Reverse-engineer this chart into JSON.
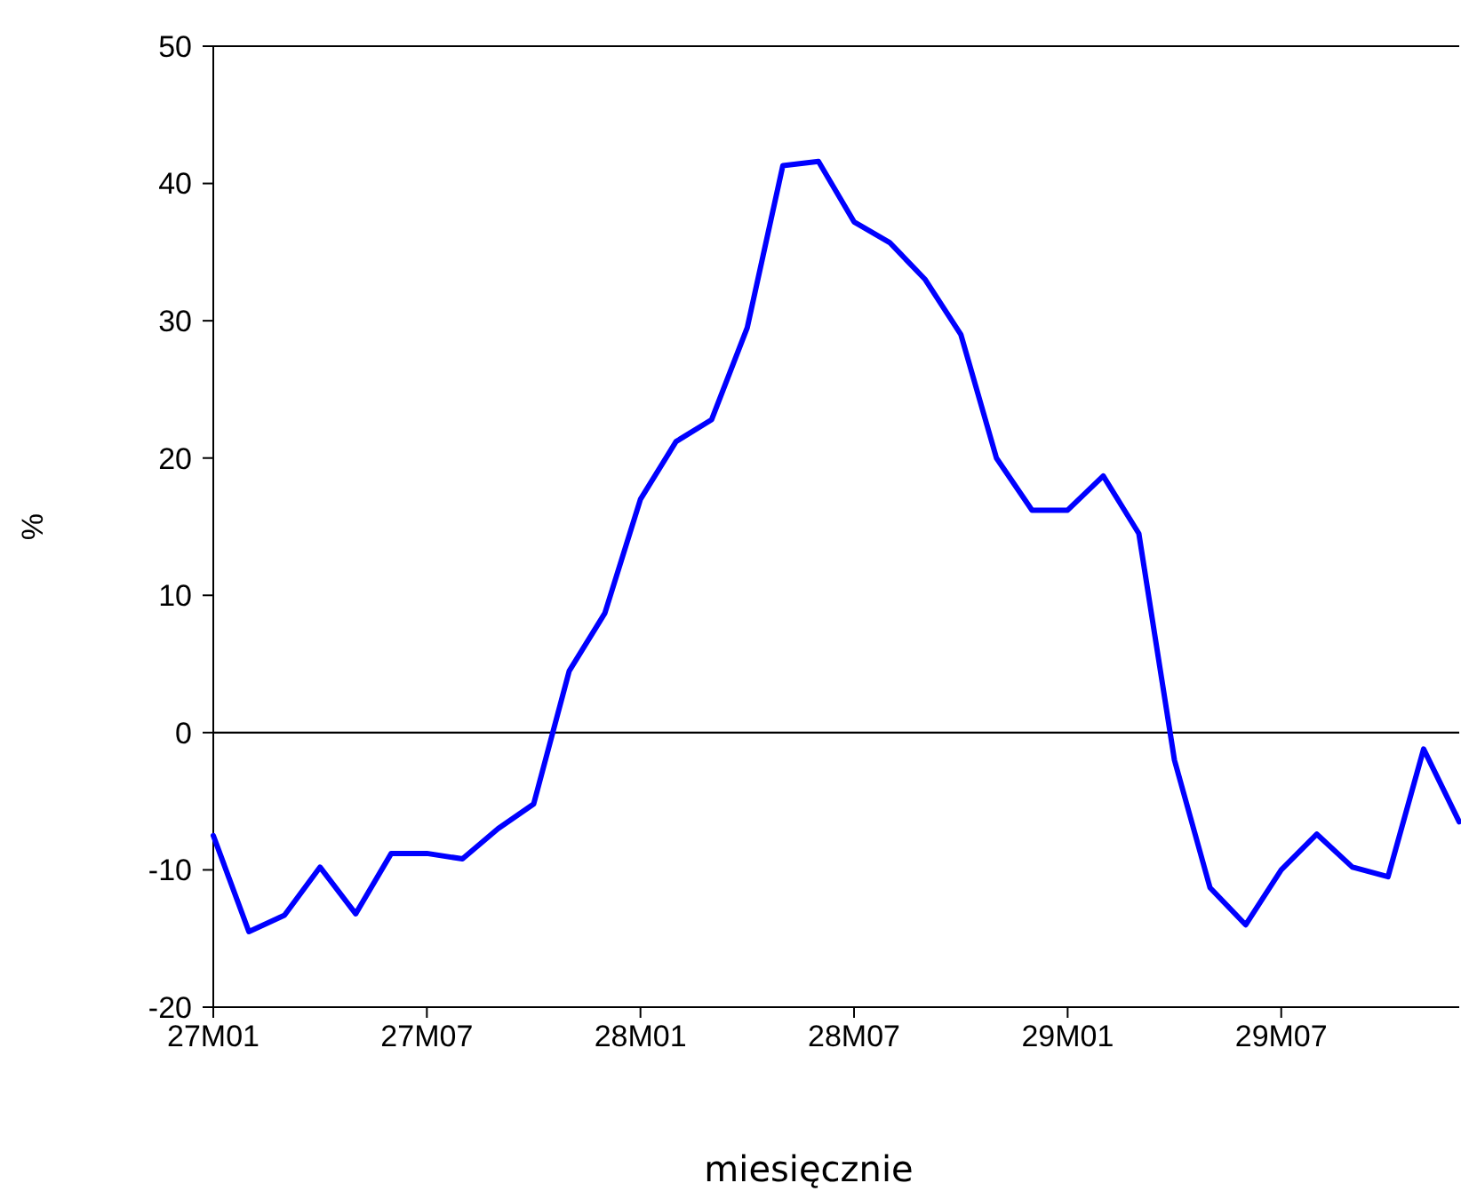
{
  "chart_data": {
    "type": "line",
    "xlabel": "miesięcznie",
    "ylabel": "%",
    "categories": [
      "27M01",
      null,
      null,
      null,
      null,
      null,
      "27M07",
      null,
      null,
      null,
      null,
      null,
      "28M01",
      null,
      null,
      null,
      null,
      null,
      "28M07",
      null,
      null,
      null,
      null,
      null,
      "29M01",
      null,
      null,
      null,
      null,
      null,
      "29M07",
      null,
      null,
      null,
      null,
      null
    ],
    "series": [
      {
        "color": "#0000ff",
        "values": [
          -7.5,
          -14.5,
          -13.3,
          -9.8,
          -13.2,
          -8.8,
          -8.8,
          -9.2,
          -7,
          -5.2,
          4.5,
          8.7,
          17,
          21.2,
          22.8,
          29.5,
          41.3,
          41.6,
          37.2,
          35.7,
          33,
          29,
          20,
          16.2,
          16.2,
          18.7,
          14.5,
          -2,
          -11.3,
          -14,
          -10,
          -7.4,
          -9.8,
          -10.5,
          -1.2,
          -6.5
        ]
      }
    ],
    "ylim": [
      -20,
      50
    ],
    "yticks": [
      -20,
      -10,
      0,
      10,
      20,
      30,
      40,
      50
    ],
    "ref_lines": [
      {
        "axis": "y",
        "value": 0,
        "color": "#000000"
      }
    ],
    "grid": false,
    "line_style": "solid",
    "marker": "none"
  }
}
